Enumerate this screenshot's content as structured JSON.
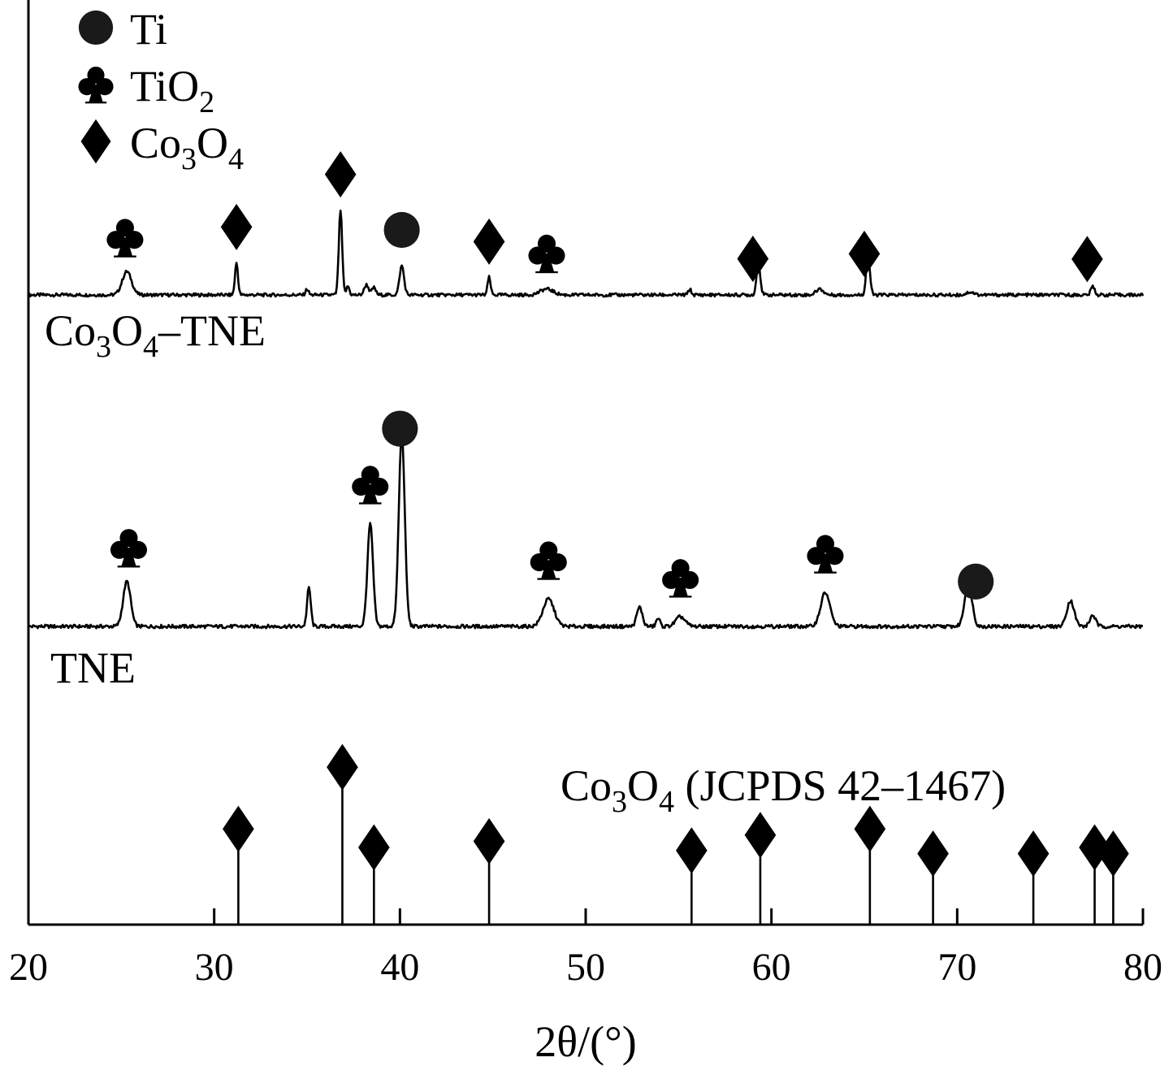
{
  "chart_data": {
    "type": "line",
    "xlabel": "2θ/(°)",
    "xlim": [
      20,
      80
    ],
    "x_ticks": [
      "20",
      "30",
      "40",
      "50",
      "60",
      "70",
      "80"
    ],
    "legend": {
      "placement": "top-left",
      "entries": [
        {
          "symbol": "circle",
          "label": "Ti"
        },
        {
          "symbol": "club",
          "label": "TiO",
          "sub": "2"
        },
        {
          "symbol": "diamond",
          "label": "Co",
          "sub1": "3",
          "mid": "O",
          "sub2": "4"
        }
      ]
    },
    "series": [
      {
        "name_parts": {
          "a": "Co",
          "s1": "3",
          "b": "O",
          "s2": "4",
          "c": "–TNE"
        },
        "baseline": 0,
        "peaks": [
          {
            "x": 25.3,
            "h": 0.16,
            "w": 0.25
          },
          {
            "x": 31.2,
            "h": 0.22,
            "w": 0.08
          },
          {
            "x": 35.0,
            "h": 0.04,
            "w": 0.08
          },
          {
            "x": 36.8,
            "h": 0.58,
            "w": 0.09
          },
          {
            "x": 37.2,
            "h": 0.06,
            "w": 0.08
          },
          {
            "x": 38.2,
            "h": 0.07,
            "w": 0.12
          },
          {
            "x": 38.6,
            "h": 0.05,
            "w": 0.1
          },
          {
            "x": 40.1,
            "h": 0.2,
            "w": 0.12
          },
          {
            "x": 44.8,
            "h": 0.12,
            "w": 0.08
          },
          {
            "x": 47.9,
            "h": 0.04,
            "w": 0.35
          },
          {
            "x": 55.6,
            "h": 0.04,
            "w": 0.08
          },
          {
            "x": 59.3,
            "h": 0.22,
            "w": 0.1
          },
          {
            "x": 62.6,
            "h": 0.04,
            "w": 0.2
          },
          {
            "x": 65.2,
            "h": 0.27,
            "w": 0.1
          },
          {
            "x": 70.7,
            "h": 0.02,
            "w": 0.2
          },
          {
            "x": 77.3,
            "h": 0.06,
            "w": 0.1
          }
        ],
        "markers": [
          {
            "x": 25.2,
            "symbol": "club"
          },
          {
            "x": 31.2,
            "symbol": "diamond"
          },
          {
            "x": 36.8,
            "symbol": "diamond"
          },
          {
            "x": 40.1,
            "symbol": "circle"
          },
          {
            "x": 44.8,
            "symbol": "diamond"
          },
          {
            "x": 47.9,
            "symbol": "club"
          },
          {
            "x": 59.0,
            "symbol": "diamond"
          },
          {
            "x": 65.0,
            "symbol": "diamond"
          },
          {
            "x": 77.0,
            "symbol": "diamond"
          }
        ]
      },
      {
        "name": "TNE",
        "baseline": 0,
        "peaks": [
          {
            "x": 25.3,
            "h": 0.28,
            "w": 0.2
          },
          {
            "x": 35.1,
            "h": 0.24,
            "w": 0.1
          },
          {
            "x": 38.4,
            "h": 0.64,
            "w": 0.15
          },
          {
            "x": 40.1,
            "h": 1.2,
            "w": 0.16
          },
          {
            "x": 48.0,
            "h": 0.17,
            "w": 0.3
          },
          {
            "x": 52.9,
            "h": 0.12,
            "w": 0.15
          },
          {
            "x": 53.9,
            "h": 0.05,
            "w": 0.1
          },
          {
            "x": 55.1,
            "h": 0.06,
            "w": 0.25
          },
          {
            "x": 62.9,
            "h": 0.21,
            "w": 0.25
          },
          {
            "x": 70.6,
            "h": 0.27,
            "w": 0.2
          },
          {
            "x": 76.1,
            "h": 0.16,
            "w": 0.2
          },
          {
            "x": 77.3,
            "h": 0.07,
            "w": 0.15
          }
        ],
        "markers": [
          {
            "x": 25.4,
            "symbol": "club"
          },
          {
            "x": 38.4,
            "symbol": "club"
          },
          {
            "x": 40.0,
            "symbol": "circle"
          },
          {
            "x": 48.0,
            "symbol": "club"
          },
          {
            "x": 55.1,
            "symbol": "club"
          },
          {
            "x": 62.9,
            "symbol": "club"
          },
          {
            "x": 71.0,
            "symbol": "circle"
          }
        ]
      }
    ],
    "reference": {
      "label_parts": {
        "a": "Co",
        "s1": "3",
        "b": "O",
        "s2": "4",
        "c": " (JCPDS 42–1467)"
      },
      "lines": [
        {
          "x": 31.3,
          "h": 0.31
        },
        {
          "x": 36.9,
          "h": 0.51
        },
        {
          "x": 38.6,
          "h": 0.25
        },
        {
          "x": 44.8,
          "h": 0.27
        },
        {
          "x": 55.7,
          "h": 0.24
        },
        {
          "x": 59.4,
          "h": 0.29
        },
        {
          "x": 65.3,
          "h": 0.31
        },
        {
          "x": 68.7,
          "h": 0.23
        },
        {
          "x": 74.1,
          "h": 0.23
        },
        {
          "x": 77.4,
          "h": 0.25
        },
        {
          "x": 78.4,
          "h": 0.23
        }
      ]
    }
  }
}
